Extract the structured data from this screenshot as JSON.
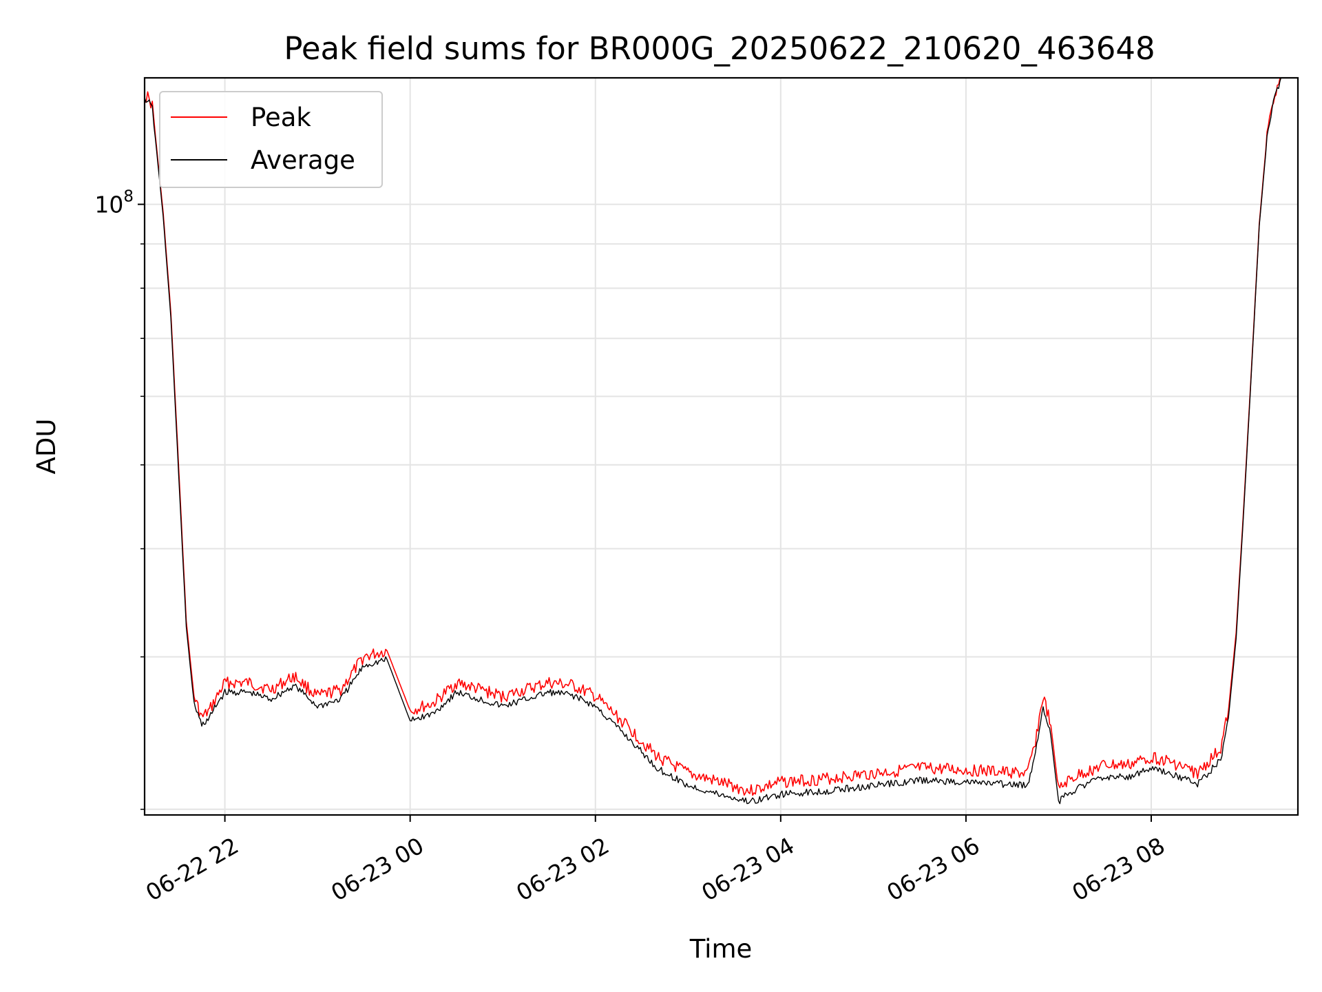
{
  "chart_data": {
    "type": "line",
    "title": "Peak field sums for BR000G_20250622_210620_463648",
    "xlabel": "Time",
    "ylabel": "ADU",
    "yscale": "log",
    "xlim": [
      "2025-06-22 21:08",
      "2025-06-23 09:35"
    ],
    "ylim": [
      19700000,
      140000000
    ],
    "x_ticks": [
      {
        "value": "2025-06-22 22:00",
        "label": "06-22 22"
      },
      {
        "value": "2025-06-23 00:00",
        "label": "06-23 00"
      },
      {
        "value": "2025-06-23 02:00",
        "label": "06-23 02"
      },
      {
        "value": "2025-06-23 04:00",
        "label": "06-23 04"
      },
      {
        "value": "2025-06-23 06:00",
        "label": "06-23 06"
      },
      {
        "value": "2025-06-23 08:00",
        "label": "06-23 08"
      }
    ],
    "y_major_ticks": [
      {
        "value": 100000000,
        "label_base": "10",
        "label_exp": "8"
      }
    ],
    "y_minor_ticks": [
      20000000,
      30000000,
      40000000,
      50000000,
      60000000,
      70000000,
      80000000,
      90000000
    ],
    "grid": true,
    "legend_position": "top-left",
    "x": [
      "2025-06-22 21:08",
      "2025-06-22 21:10",
      "2025-06-22 21:13",
      "2025-06-22 21:15",
      "2025-06-22 21:20",
      "2025-06-22 21:25",
      "2025-06-22 21:30",
      "2025-06-22 21:35",
      "2025-06-22 21:40",
      "2025-06-22 21:45",
      "2025-06-22 21:50",
      "2025-06-22 21:55",
      "2025-06-22 22:00",
      "2025-06-22 22:15",
      "2025-06-22 22:30",
      "2025-06-22 22:45",
      "2025-06-22 23:00",
      "2025-06-22 23:15",
      "2025-06-22 23:30",
      "2025-06-22 23:45",
      "2025-06-23 00:00",
      "2025-06-23 00:15",
      "2025-06-23 00:30",
      "2025-06-23 00:45",
      "2025-06-23 01:00",
      "2025-06-23 01:15",
      "2025-06-23 01:30",
      "2025-06-23 01:45",
      "2025-06-23 02:00",
      "2025-06-23 02:20",
      "2025-06-23 02:40",
      "2025-06-23 03:00",
      "2025-06-23 03:20",
      "2025-06-23 03:40",
      "2025-06-23 04:00",
      "2025-06-23 04:30",
      "2025-06-23 05:00",
      "2025-06-23 05:30",
      "2025-06-23 06:00",
      "2025-06-23 06:40",
      "2025-06-23 06:45",
      "2025-06-23 06:50",
      "2025-06-23 06:55",
      "2025-06-23 07:00",
      "2025-06-23 07:05",
      "2025-06-23 07:15",
      "2025-06-23 07:30",
      "2025-06-23 07:45",
      "2025-06-23 08:00",
      "2025-06-23 08:15",
      "2025-06-23 08:30",
      "2025-06-23 08:45",
      "2025-06-23 08:50",
      "2025-06-23 08:55",
      "2025-06-23 09:00",
      "2025-06-23 09:05",
      "2025-06-23 09:10",
      "2025-06-23 09:15",
      "2025-06-23 09:20",
      "2025-06-23 09:25"
    ],
    "series": [
      {
        "name": "Peak",
        "color": "#ff0000",
        "values": [
          133000000,
          133000000,
          130000000,
          120000000,
          98000000,
          75000000,
          50000000,
          33000000,
          27000000,
          25500000,
          26000000,
          27000000,
          28000000,
          28000000,
          27500000,
          28500000,
          27000000,
          27500000,
          30000000,
          30500000,
          26000000,
          26500000,
          28000000,
          27500000,
          27000000,
          27500000,
          28000000,
          27800000,
          27000000,
          25000000,
          23000000,
          22000000,
          21500000,
          21000000,
          21500000,
          21700000,
          22000000,
          22300000,
          22200000,
          22000000,
          24000000,
          27000000,
          25000000,
          21000000,
          21500000,
          22000000,
          22500000,
          22500000,
          23000000,
          22600000,
          22000000,
          23500000,
          26000000,
          32000000,
          45000000,
          65000000,
          95000000,
          120000000,
          135000000,
          140000000
        ]
      },
      {
        "name": "Average",
        "color": "#000000",
        "values": [
          132000000,
          132000000,
          129000000,
          119000000,
          97000000,
          74000000,
          49000000,
          32500000,
          26500000,
          25000000,
          25500000,
          26500000,
          27300000,
          27300000,
          26800000,
          27800000,
          26300000,
          26800000,
          29300000,
          29800000,
          25300000,
          25800000,
          27300000,
          26800000,
          26300000,
          26800000,
          27300000,
          27100000,
          26300000,
          24300000,
          22300000,
          21300000,
          20800000,
          20400000,
          20800000,
          21000000,
          21300000,
          21600000,
          21500000,
          21300000,
          23300000,
          26300000,
          24300000,
          20400000,
          20800000,
          21300000,
          21800000,
          21800000,
          22300000,
          21900000,
          21400000,
          22800000,
          25500000,
          31500000,
          44500000,
          64500000,
          94500000,
          119000000,
          134500000,
          140000000
        ]
      }
    ]
  }
}
